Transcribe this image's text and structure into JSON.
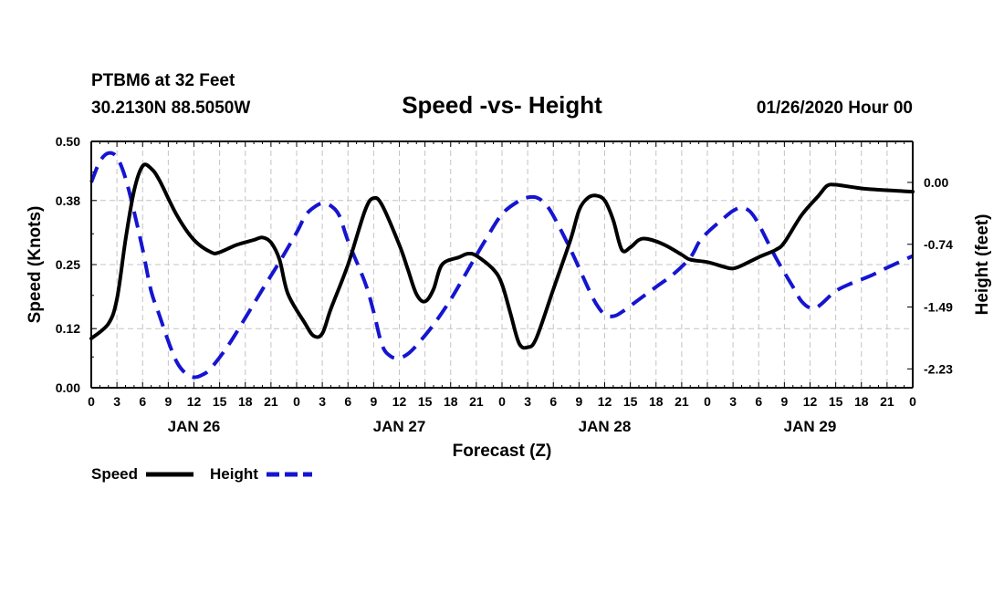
{
  "header": {
    "station": "PTBM6 at 32 Feet",
    "coords": "30.2130N 88.5050W",
    "title": "Speed -vs- Height",
    "run": "01/26/2020 Hour 00"
  },
  "legend": {
    "speed_label": "Speed",
    "height_label": "Height"
  },
  "chart_data": {
    "type": "line",
    "title": "Speed -vs- Height",
    "xlabel": "Forecast (Z)",
    "ylabel_left": "Speed (Knots)",
    "ylabel_right": "Height (feet)",
    "x_range_hours": [
      0,
      96
    ],
    "x_tick_labels": [
      "0",
      "3",
      "6",
      "9",
      "12",
      "15",
      "18",
      "21",
      "0",
      "3",
      "6",
      "9",
      "12",
      "15",
      "18",
      "21",
      "0",
      "3",
      "6",
      "9",
      "12",
      "15",
      "18",
      "21",
      "0",
      "3",
      "6",
      "9",
      "12",
      "15",
      "18",
      "21",
      "0"
    ],
    "day_labels": [
      {
        "label": "JAN 26",
        "hour": 12
      },
      {
        "label": "JAN 27",
        "hour": 36
      },
      {
        "label": "JAN 28",
        "hour": 60
      },
      {
        "label": "JAN 29",
        "hour": 84
      }
    ],
    "ylim_left": [
      0,
      0.5
    ],
    "left_ticks": [
      "0.00",
      "0.12",
      "0.25",
      "0.38",
      "0.50"
    ],
    "ylim_right": [
      -2.455,
      0.49
    ],
    "right_ticks": [
      {
        "label": "0.00",
        "value": 0.0
      },
      {
        "label": "-0.74",
        "value": -0.74
      },
      {
        "label": "-1.49",
        "value": -1.49
      },
      {
        "label": "-2.23",
        "value": -2.23
      }
    ],
    "grid": true,
    "series": [
      {
        "name": "Speed",
        "axis": "left",
        "color": "#000000",
        "dash": "solid",
        "points": [
          [
            0,
            0.1
          ],
          [
            2,
            0.13
          ],
          [
            3,
            0.18
          ],
          [
            4,
            0.3
          ],
          [
            5,
            0.4
          ],
          [
            6,
            0.45
          ],
          [
            7,
            0.445
          ],
          [
            8,
            0.42
          ],
          [
            10,
            0.35
          ],
          [
            12,
            0.3
          ],
          [
            14,
            0.275
          ],
          [
            15,
            0.275
          ],
          [
            17,
            0.29
          ],
          [
            19,
            0.3
          ],
          [
            20,
            0.305
          ],
          [
            21,
            0.295
          ],
          [
            22,
            0.26
          ],
          [
            23,
            0.19
          ],
          [
            25,
            0.13
          ],
          [
            26,
            0.105
          ],
          [
            27,
            0.11
          ],
          [
            28,
            0.16
          ],
          [
            30,
            0.25
          ],
          [
            32,
            0.36
          ],
          [
            33,
            0.385
          ],
          [
            34,
            0.37
          ],
          [
            36,
            0.29
          ],
          [
            37,
            0.24
          ],
          [
            38,
            0.19
          ],
          [
            39,
            0.175
          ],
          [
            40,
            0.2
          ],
          [
            41,
            0.25
          ],
          [
            43,
            0.265
          ],
          [
            44,
            0.272
          ],
          [
            45,
            0.268
          ],
          [
            47,
            0.24
          ],
          [
            48,
            0.21
          ],
          [
            49,
            0.15
          ],
          [
            50,
            0.09
          ],
          [
            51,
            0.082
          ],
          [
            52,
            0.1
          ],
          [
            54,
            0.2
          ],
          [
            56,
            0.3
          ],
          [
            57,
            0.36
          ],
          [
            58,
            0.385
          ],
          [
            59,
            0.39
          ],
          [
            60,
            0.38
          ],
          [
            61,
            0.34
          ],
          [
            62,
            0.28
          ],
          [
            63,
            0.285
          ],
          [
            64,
            0.3
          ],
          [
            65,
            0.302
          ],
          [
            67,
            0.29
          ],
          [
            69,
            0.27
          ],
          [
            70,
            0.26
          ],
          [
            72,
            0.255
          ],
          [
            74,
            0.245
          ],
          [
            75,
            0.242
          ],
          [
            76,
            0.248
          ],
          [
            78,
            0.265
          ],
          [
            80,
            0.28
          ],
          [
            81,
            0.295
          ],
          [
            83,
            0.35
          ],
          [
            85,
            0.39
          ],
          [
            86,
            0.41
          ],
          [
            87,
            0.412
          ],
          [
            89,
            0.407
          ],
          [
            91,
            0.403
          ],
          [
            96,
            0.398
          ]
        ]
      },
      {
        "name": "Height",
        "axis": "right",
        "color": "#1515d0",
        "dash": "dashed",
        "points": [
          [
            0,
            0.0
          ],
          [
            1,
            0.25
          ],
          [
            2,
            0.35
          ],
          [
            3,
            0.3
          ],
          [
            4,
            0.05
          ],
          [
            5,
            -0.35
          ],
          [
            6,
            -0.8
          ],
          [
            7,
            -1.3
          ],
          [
            8,
            -1.6
          ],
          [
            9,
            -1.9
          ],
          [
            10,
            -2.15
          ],
          [
            11,
            -2.28
          ],
          [
            12,
            -2.33
          ],
          [
            13,
            -2.3
          ],
          [
            14,
            -2.22
          ],
          [
            16,
            -1.95
          ],
          [
            18,
            -1.62
          ],
          [
            20,
            -1.28
          ],
          [
            22,
            -0.95
          ],
          [
            24,
            -0.6
          ],
          [
            25,
            -0.4
          ],
          [
            26,
            -0.3
          ],
          [
            27,
            -0.25
          ],
          [
            28,
            -0.28
          ],
          [
            29,
            -0.4
          ],
          [
            30,
            -0.7
          ],
          [
            32,
            -1.2
          ],
          [
            33,
            -1.55
          ],
          [
            34,
            -1.95
          ],
          [
            35,
            -2.08
          ],
          [
            36,
            -2.1
          ],
          [
            37,
            -2.05
          ],
          [
            38,
            -1.95
          ],
          [
            40,
            -1.7
          ],
          [
            42,
            -1.4
          ],
          [
            44,
            -1.05
          ],
          [
            46,
            -0.7
          ],
          [
            48,
            -0.38
          ],
          [
            50,
            -0.22
          ],
          [
            51,
            -0.18
          ],
          [
            52,
            -0.18
          ],
          [
            53,
            -0.25
          ],
          [
            54,
            -0.4
          ],
          [
            56,
            -0.8
          ],
          [
            58,
            -1.25
          ],
          [
            59,
            -1.45
          ],
          [
            60,
            -1.58
          ],
          [
            61,
            -1.6
          ],
          [
            62,
            -1.55
          ],
          [
            64,
            -1.4
          ],
          [
            66,
            -1.25
          ],
          [
            68,
            -1.1
          ],
          [
            70,
            -0.9
          ],
          [
            71,
            -0.72
          ],
          [
            72,
            -0.6
          ],
          [
            74,
            -0.42
          ],
          [
            75,
            -0.34
          ],
          [
            76,
            -0.3
          ],
          [
            77,
            -0.35
          ],
          [
            78,
            -0.5
          ],
          [
            80,
            -0.9
          ],
          [
            82,
            -1.25
          ],
          [
            83,
            -1.42
          ],
          [
            84,
            -1.5
          ],
          [
            85,
            -1.48
          ],
          [
            87,
            -1.3
          ],
          [
            89,
            -1.2
          ],
          [
            91,
            -1.12
          ],
          [
            93,
            -1.02
          ],
          [
            96,
            -0.88
          ]
        ]
      }
    ]
  }
}
